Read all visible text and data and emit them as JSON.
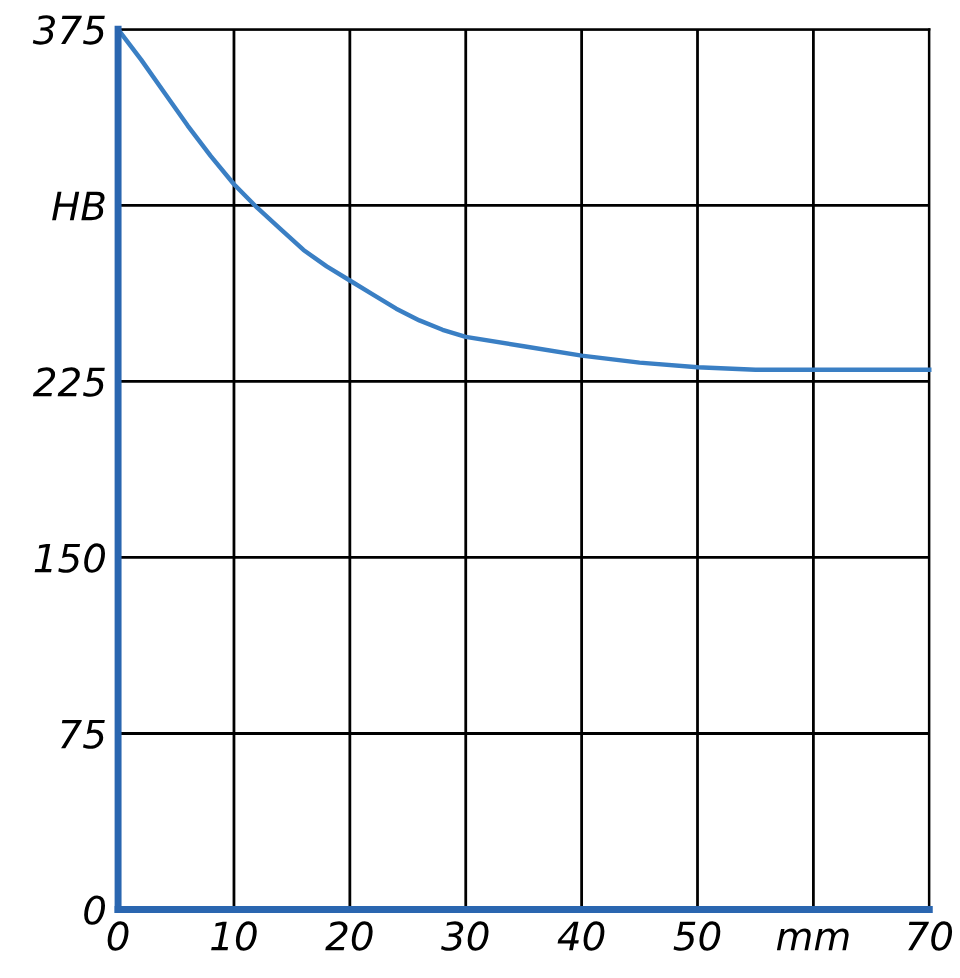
{
  "chart_data": {
    "type": "line",
    "x": [
      0,
      2,
      4,
      6,
      8,
      10,
      12,
      14,
      16,
      18,
      20,
      22,
      24,
      26,
      28,
      30,
      35,
      40,
      45,
      50,
      55,
      60,
      65,
      70
    ],
    "series": [
      {
        "color": "#3a7fc4",
        "values": [
          375,
          362,
          348,
          334,
          321,
          309,
          299,
          290,
          281,
          274,
          268,
          262,
          256,
          251,
          247,
          244,
          240,
          236,
          233,
          231,
          230,
          230,
          230,
          230
        ]
      }
    ],
    "xlim": [
      0,
      70
    ],
    "ylim": [
      0,
      375
    ],
    "xticks": [
      0,
      10,
      20,
      30,
      40,
      50,
      {
        "value": 60,
        "label": "mm"
      },
      70
    ],
    "yticks": [
      0,
      75,
      150,
      225,
      {
        "value": 300,
        "label": "HB"
      },
      375
    ],
    "grid": true,
    "marker": "none",
    "line_style": "solid"
  }
}
